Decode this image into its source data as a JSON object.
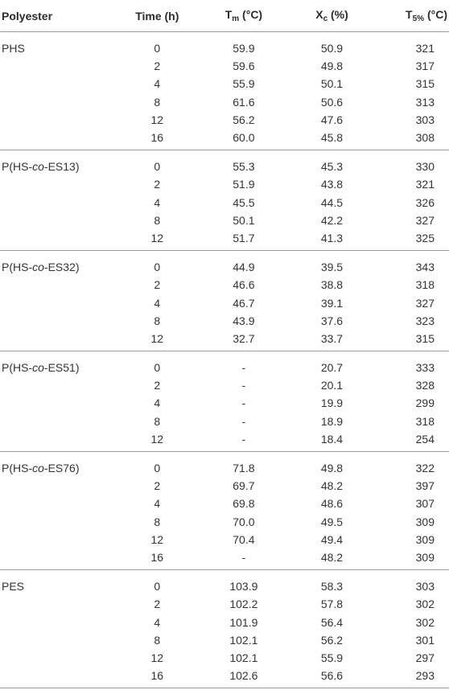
{
  "table": {
    "header": [
      {
        "main": "Polyester"
      },
      {
        "main": "Time (h)"
      },
      {
        "main": "T",
        "sub": "m",
        "rest": " (°C)"
      },
      {
        "main": "X",
        "sub": "c",
        "rest": " (%)"
      },
      {
        "main": "T",
        "sub": "5%",
        "rest": " (°C)"
      }
    ],
    "groups": [
      {
        "name": {
          "pre": "PHS"
        },
        "rows": [
          [
            "0",
            "59.9",
            "50.9",
            "321"
          ],
          [
            "2",
            "59.6",
            "49.8",
            "317"
          ],
          [
            "4",
            "55.9",
            "50.1",
            "315"
          ],
          [
            "8",
            "61.6",
            "50.6",
            "313"
          ],
          [
            "12",
            "56.2",
            "47.6",
            "303"
          ],
          [
            "16",
            "60.0",
            "45.8",
            "308"
          ]
        ]
      },
      {
        "name": {
          "pre": "P(HS-",
          "italic": "co",
          "post": "-ES13)"
        },
        "rows": [
          [
            "0",
            "55.3",
            "45.3",
            "330"
          ],
          [
            "2",
            "51.9",
            "43.8",
            "321"
          ],
          [
            "4",
            "45.5",
            "44.5",
            "326"
          ],
          [
            "8",
            "50.1",
            "42.2",
            "327"
          ],
          [
            "12",
            "51.7",
            "41.3",
            "325"
          ]
        ]
      },
      {
        "name": {
          "pre": "P(HS-",
          "italic": "co",
          "post": "-ES32)"
        },
        "rows": [
          [
            "0",
            "44.9",
            "39.5",
            "343"
          ],
          [
            "2",
            "46.6",
            "38.8",
            "318"
          ],
          [
            "4",
            "46.7",
            "39.1",
            "327"
          ],
          [
            "8",
            "43.9",
            "37.6",
            "323"
          ],
          [
            "12",
            "32.7",
            "33.7",
            "315"
          ]
        ]
      },
      {
        "name": {
          "pre": "P(HS-",
          "italic": "co",
          "post": "-ES51)"
        },
        "rows": [
          [
            "0",
            "-",
            "20.7",
            "333"
          ],
          [
            "2",
            "-",
            "20.1",
            "328"
          ],
          [
            "4",
            "-",
            "19.9",
            "299"
          ],
          [
            "8",
            "-",
            "18.9",
            "318"
          ],
          [
            "12",
            "-",
            "18.4",
            "254"
          ]
        ]
      },
      {
        "name": {
          "pre": "P(HS-",
          "italic": "co",
          "post": "-ES76)"
        },
        "rows": [
          [
            "0",
            "71.8",
            "49.8",
            "322"
          ],
          [
            "2",
            "69.7",
            "48.2",
            "397"
          ],
          [
            "4",
            "69.8",
            "48.6",
            "307"
          ],
          [
            "8",
            "70.0",
            "49.5",
            "309"
          ],
          [
            "12",
            "70.4",
            "49.4",
            "309"
          ],
          [
            "16",
            "-",
            "48.2",
            "309"
          ]
        ]
      },
      {
        "name": {
          "pre": "PES"
        },
        "rows": [
          [
            "0",
            "103.9",
            "58.3",
            "303"
          ],
          [
            "2",
            "102.2",
            "57.8",
            "302"
          ],
          [
            "4",
            "101.9",
            "56.4",
            "302"
          ],
          [
            "8",
            "102.1",
            "56.2",
            "301"
          ],
          [
            "12",
            "102.1",
            "55.9",
            "297"
          ],
          [
            "16",
            "102.6",
            "56.6",
            "293"
          ]
        ]
      }
    ]
  }
}
